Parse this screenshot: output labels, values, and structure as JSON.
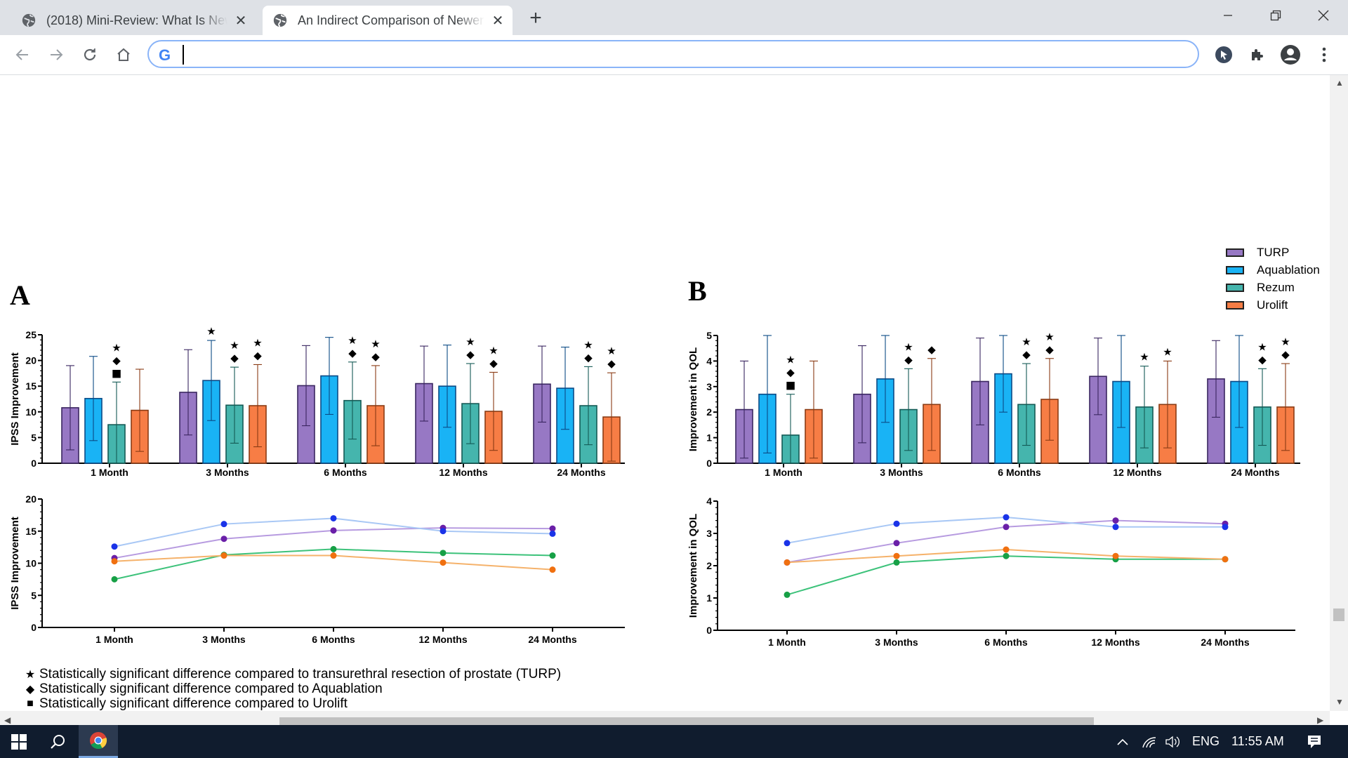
{
  "browser": {
    "tabs": [
      {
        "title": "(2018) Mini-Review: What Is New",
        "active": false
      },
      {
        "title": "An Indirect Comparison of Newer",
        "active": true
      }
    ],
    "address": {
      "value": "",
      "placeholder": ""
    },
    "omnibox_icon": "google-g-icon"
  },
  "legend": {
    "items": [
      {
        "label": "TURP",
        "color": "#9778c4"
      },
      {
        "label": "Aquablation",
        "color": "#19b3f5"
      },
      {
        "label": "Rezum",
        "color": "#45b5ad"
      },
      {
        "label": "Urolift",
        "color": "#f77d45"
      }
    ]
  },
  "panels": {
    "a": "A",
    "b": "B"
  },
  "footnotes": [
    {
      "symbol": "★",
      "text": "Statistically significant difference compared to transurethral resection of prostate (TURP)"
    },
    {
      "symbol": "◆",
      "text": "Statistically significant difference compared to Aquablation"
    },
    {
      "symbol": "■",
      "text": "Statistically significant difference compared to Urolift"
    }
  ],
  "taskbar": {
    "language": "ENG",
    "time": "11:55 AM"
  },
  "chart_data": [
    {
      "type": "bar",
      "panel": "A",
      "ylabel": "IPSS Improvement",
      "categories": [
        "1 Month",
        "3 Months",
        "6 Months",
        "12 Months",
        "24 Months"
      ],
      "ylim": [
        0,
        25
      ],
      "yticks": [
        0,
        5,
        10,
        15,
        20,
        25
      ],
      "series": [
        {
          "name": "TURP",
          "values": [
            10.8,
            13.8,
            15.1,
            15.5,
            15.4
          ],
          "errors": [
            8.2,
            8.3,
            7.8,
            7.3,
            7.4
          ]
        },
        {
          "name": "Aquablation",
          "values": [
            12.6,
            16.1,
            17.0,
            15.0,
            14.6
          ],
          "errors": [
            8.2,
            7.8,
            7.5,
            8.0,
            8.0
          ]
        },
        {
          "name": "Rezum",
          "values": [
            7.5,
            11.3,
            12.2,
            11.6,
            11.2
          ],
          "errors": [
            8.3,
            7.4,
            7.5,
            7.8,
            7.6
          ]
        },
        {
          "name": "Urolift",
          "values": [
            10.3,
            11.2,
            11.2,
            10.1,
            9.0
          ],
          "errors": [
            8.0,
            8.0,
            7.8,
            7.6,
            8.6
          ]
        }
      ],
      "annotations": [
        [
          "",
          "",
          "★◆■",
          ""
        ],
        [
          "",
          "★",
          "★◆",
          "★◆"
        ],
        [
          "",
          "",
          "★◆",
          "★◆"
        ],
        [
          "",
          "",
          "★◆",
          "★◆"
        ],
        [
          "",
          "",
          "★◆",
          "★◆"
        ]
      ]
    },
    {
      "type": "line",
      "panel": "A",
      "ylabel": "IPSS Improvement",
      "x": [
        "1 Month",
        "3 Months",
        "6 Months",
        "12 Months",
        "24 Months"
      ],
      "ylim": [
        0,
        20
      ],
      "yticks": [
        0,
        5,
        10,
        15,
        20
      ],
      "series": [
        {
          "name": "TURP",
          "values": [
            10.8,
            13.8,
            15.1,
            15.5,
            15.4
          ]
        },
        {
          "name": "Aquablation",
          "values": [
            12.6,
            16.1,
            17.0,
            15.0,
            14.6
          ]
        },
        {
          "name": "Rezum",
          "values": [
            7.5,
            11.3,
            12.2,
            11.6,
            11.2
          ]
        },
        {
          "name": "Urolift",
          "values": [
            10.3,
            11.2,
            11.2,
            10.1,
            9.0
          ]
        }
      ]
    },
    {
      "type": "bar",
      "panel": "B",
      "ylabel": "Improvement in QOL",
      "categories": [
        "1 Month",
        "3 Months",
        "6 Months",
        "12 Months",
        "24 Months"
      ],
      "ylim": [
        0,
        5
      ],
      "yticks": [
        0,
        1,
        2,
        3,
        4,
        5
      ],
      "series": [
        {
          "name": "TURP",
          "values": [
            2.1,
            2.7,
            3.2,
            3.4,
            3.3
          ],
          "errors": [
            1.9,
            1.9,
            1.7,
            1.5,
            1.5
          ]
        },
        {
          "name": "Aquablation",
          "values": [
            2.7,
            3.3,
            3.5,
            3.2,
            3.2
          ],
          "errors": [
            2.3,
            1.7,
            1.5,
            1.8,
            1.8
          ]
        },
        {
          "name": "Rezum",
          "values": [
            1.1,
            2.1,
            2.3,
            2.2,
            2.2
          ],
          "errors": [
            1.6,
            1.6,
            1.6,
            1.6,
            1.5
          ]
        },
        {
          "name": "Urolift",
          "values": [
            2.1,
            2.3,
            2.5,
            2.3,
            2.2
          ],
          "errors": [
            1.9,
            1.8,
            1.6,
            1.7,
            1.7
          ]
        }
      ],
      "annotations": [
        [
          "",
          "",
          "★◆■",
          ""
        ],
        [
          "",
          "",
          "★◆",
          "◆"
        ],
        [
          "",
          "",
          "★◆",
          "★◆"
        ],
        [
          "",
          "",
          "★",
          "★"
        ],
        [
          "",
          "",
          "★◆",
          "★◆"
        ]
      ]
    },
    {
      "type": "line",
      "panel": "B",
      "ylabel": "Improvement in QOL",
      "x": [
        "1 Month",
        "3 Months",
        "6 Months",
        "12 Months",
        "24 Months"
      ],
      "ylim": [
        0,
        4
      ],
      "yticks": [
        0,
        1,
        2,
        3,
        4
      ],
      "series": [
        {
          "name": "TURP",
          "values": [
            2.1,
            2.7,
            3.2,
            3.4,
            3.3
          ]
        },
        {
          "name": "Aquablation",
          "values": [
            2.7,
            3.3,
            3.5,
            3.2,
            3.2
          ]
        },
        {
          "name": "Rezum",
          "values": [
            1.1,
            2.1,
            2.3,
            2.2,
            2.2
          ]
        },
        {
          "name": "Urolift",
          "values": [
            2.1,
            2.3,
            2.5,
            2.3,
            2.2
          ]
        }
      ]
    }
  ]
}
